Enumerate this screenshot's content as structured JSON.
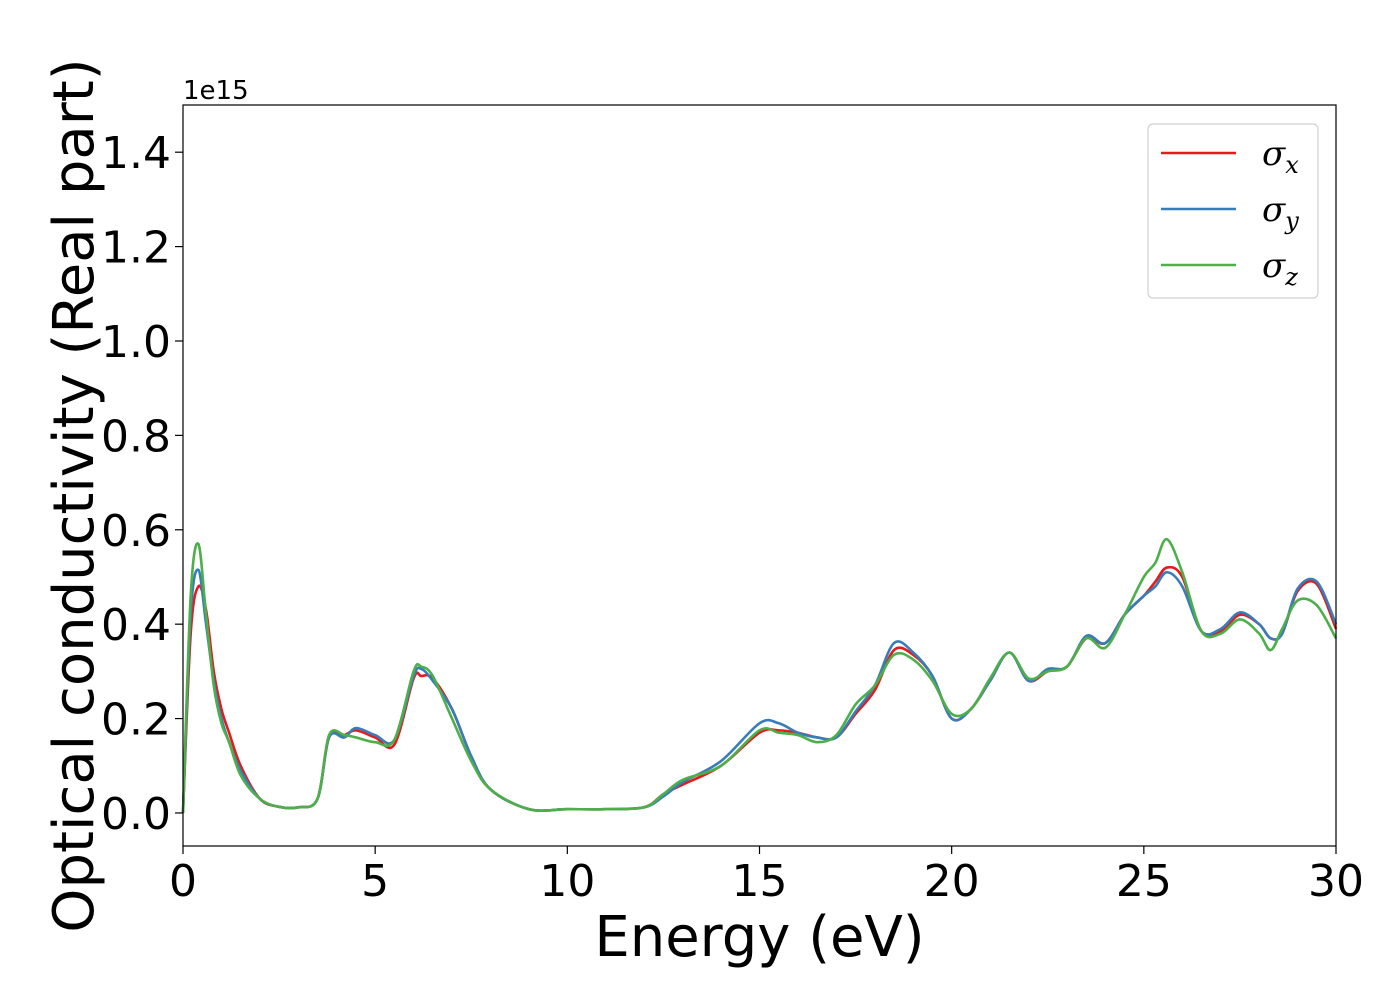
{
  "chart_data": {
    "type": "line",
    "title": "",
    "xlabel": "Energy (eV)",
    "ylabel": "Optical conductivity (Real part)",
    "y_offset_text": "1e15",
    "xlim": [
      0,
      30
    ],
    "ylim": [
      -0.07,
      1.5
    ],
    "x_ticks": [
      0,
      5,
      10,
      15,
      20,
      25,
      30
    ],
    "x_tick_labels": [
      "0",
      "5",
      "10",
      "15",
      "20",
      "25",
      "30"
    ],
    "y_ticks": [
      0.0,
      0.2,
      0.4,
      0.6,
      0.8,
      1.0,
      1.2,
      1.4
    ],
    "y_tick_labels": [
      "0.0",
      "0.2",
      "0.4",
      "0.6",
      "0.8",
      "1.0",
      "1.2",
      "1.4"
    ],
    "grid": false,
    "legend_position": "top-right",
    "x": [
      0,
      0.2,
      0.4,
      0.6,
      0.8,
      1.0,
      1.2,
      1.5,
      2.0,
      2.5,
      3.0,
      3.5,
      3.8,
      4.2,
      4.5,
      5.0,
      5.5,
      6.0,
      6.2,
      6.5,
      7.0,
      7.5,
      8.0,
      9.0,
      10.0,
      11.0,
      12.0,
      12.5,
      13.0,
      14.0,
      15.0,
      15.5,
      16.0,
      16.5,
      17.0,
      17.5,
      18.0,
      18.5,
      19.0,
      19.5,
      20.0,
      20.5,
      21.0,
      21.5,
      22.0,
      22.5,
      23.0,
      23.5,
      24.0,
      24.5,
      25.0,
      25.3,
      25.6,
      26.0,
      26.5,
      27.0,
      27.5,
      28.0,
      28.3,
      28.6,
      29.0,
      29.5,
      30.0
    ],
    "series": [
      {
        "name": "σx",
        "label_main": "σ",
        "label_sub": "x",
        "color": "#e41a1c",
        "values": [
          0,
          0.38,
          0.48,
          0.43,
          0.3,
          0.22,
          0.17,
          0.1,
          0.03,
          0.013,
          0.012,
          0.03,
          0.16,
          0.165,
          0.175,
          0.16,
          0.145,
          0.285,
          0.29,
          0.285,
          0.22,
          0.12,
          0.05,
          0.008,
          0.008,
          0.008,
          0.012,
          0.04,
          0.06,
          0.1,
          0.17,
          0.175,
          0.17,
          0.16,
          0.16,
          0.21,
          0.26,
          0.345,
          0.335,
          0.29,
          0.2,
          0.22,
          0.28,
          0.34,
          0.28,
          0.3,
          0.31,
          0.37,
          0.36,
          0.42,
          0.46,
          0.49,
          0.52,
          0.5,
          0.385,
          0.385,
          0.42,
          0.4,
          0.37,
          0.38,
          0.47,
          0.485,
          0.39
        ]
      },
      {
        "name": "σy",
        "label_main": "σ",
        "label_sub": "y",
        "color": "#377eb8",
        "values": [
          0,
          0.42,
          0.515,
          0.4,
          0.28,
          0.2,
          0.15,
          0.09,
          0.03,
          0.013,
          0.012,
          0.03,
          0.16,
          0.16,
          0.18,
          0.165,
          0.155,
          0.29,
          0.305,
          0.28,
          0.22,
          0.12,
          0.05,
          0.008,
          0.008,
          0.008,
          0.012,
          0.035,
          0.065,
          0.11,
          0.19,
          0.19,
          0.17,
          0.16,
          0.16,
          0.215,
          0.27,
          0.36,
          0.34,
          0.29,
          0.2,
          0.22,
          0.28,
          0.34,
          0.28,
          0.305,
          0.31,
          0.375,
          0.36,
          0.42,
          0.46,
          0.48,
          0.51,
          0.48,
          0.385,
          0.39,
          0.425,
          0.4,
          0.37,
          0.38,
          0.475,
          0.49,
          0.4
        ]
      },
      {
        "name": "σz",
        "label_main": "σ",
        "label_sub": "z",
        "color": "#4daf4a",
        "values": [
          0,
          0.46,
          0.57,
          0.42,
          0.27,
          0.19,
          0.15,
          0.08,
          0.03,
          0.013,
          0.012,
          0.03,
          0.165,
          0.165,
          0.16,
          0.15,
          0.155,
          0.3,
          0.31,
          0.29,
          0.2,
          0.11,
          0.05,
          0.008,
          0.008,
          0.008,
          0.012,
          0.04,
          0.07,
          0.1,
          0.175,
          0.17,
          0.165,
          0.15,
          0.165,
          0.23,
          0.27,
          0.335,
          0.325,
          0.28,
          0.21,
          0.22,
          0.285,
          0.34,
          0.285,
          0.3,
          0.31,
          0.37,
          0.35,
          0.42,
          0.5,
          0.53,
          0.58,
          0.51,
          0.385,
          0.38,
          0.41,
          0.38,
          0.345,
          0.39,
          0.45,
          0.44,
          0.37
        ]
      }
    ]
  }
}
